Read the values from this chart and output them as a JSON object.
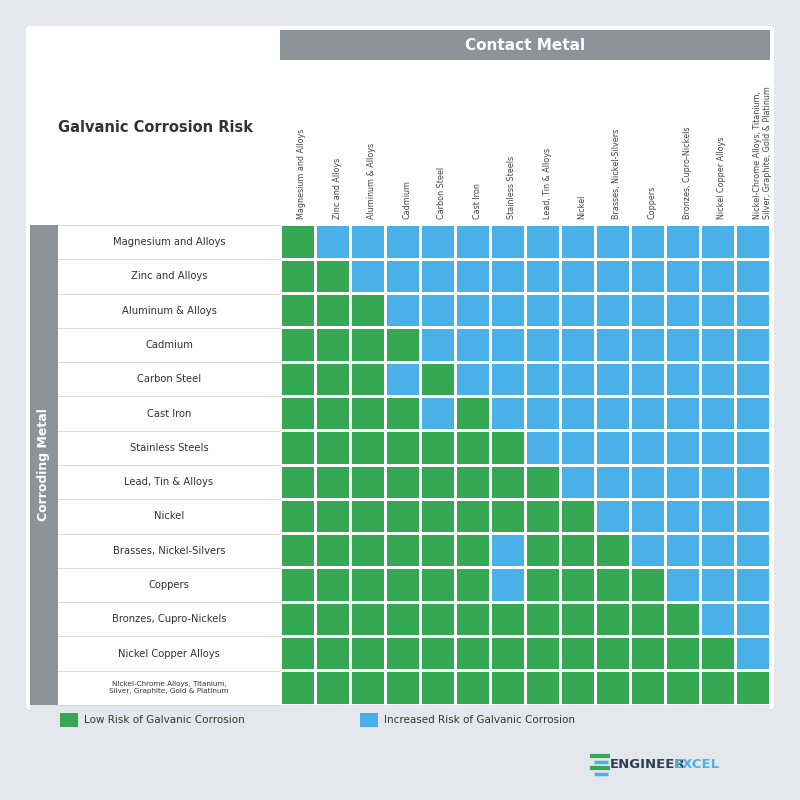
{
  "metals": [
    "Magnesium and Alloys",
    "Zinc and Alloys",
    "Aluminum & Alloys",
    "Cadmium",
    "Carbon Steel",
    "Cast Iron",
    "Stainless Steels",
    "Lead, Tin & Alloys",
    "Nickel",
    "Brasses, Nickel-Silvers",
    "Coppers",
    "Bronzes, Cupro-Nickels",
    "Nickel Copper Alloys",
    "Nickel-Chrome Alloys, Titanium,\nSilver, Graphite, Gold & Platinum"
  ],
  "matrix": [
    [
      1,
      0,
      0,
      0,
      0,
      0,
      0,
      0,
      0,
      0,
      0,
      0,
      0,
      0
    ],
    [
      1,
      1,
      0,
      0,
      0,
      0,
      0,
      0,
      0,
      0,
      0,
      0,
      0,
      0
    ],
    [
      1,
      1,
      1,
      0,
      0,
      0,
      0,
      0,
      0,
      0,
      0,
      0,
      0,
      0
    ],
    [
      1,
      1,
      1,
      1,
      0,
      0,
      0,
      0,
      0,
      0,
      0,
      0,
      0,
      0
    ],
    [
      1,
      1,
      1,
      0,
      1,
      0,
      0,
      0,
      0,
      0,
      0,
      0,
      0,
      0
    ],
    [
      1,
      1,
      1,
      1,
      0,
      1,
      0,
      0,
      0,
      0,
      0,
      0,
      0,
      0
    ],
    [
      1,
      1,
      1,
      1,
      1,
      1,
      1,
      0,
      0,
      0,
      0,
      0,
      0,
      0
    ],
    [
      1,
      1,
      1,
      1,
      1,
      1,
      1,
      1,
      0,
      0,
      0,
      0,
      0,
      0
    ],
    [
      1,
      1,
      1,
      1,
      1,
      1,
      1,
      1,
      1,
      0,
      0,
      0,
      0,
      0
    ],
    [
      1,
      1,
      1,
      1,
      1,
      1,
      0,
      1,
      1,
      1,
      0,
      0,
      0,
      0
    ],
    [
      1,
      1,
      1,
      1,
      1,
      1,
      0,
      1,
      1,
      1,
      1,
      0,
      0,
      0
    ],
    [
      1,
      1,
      1,
      1,
      1,
      1,
      1,
      1,
      1,
      1,
      1,
      1,
      0,
      0
    ],
    [
      1,
      1,
      1,
      1,
      1,
      1,
      1,
      1,
      1,
      1,
      1,
      1,
      1,
      0
    ],
    [
      1,
      1,
      1,
      1,
      1,
      1,
      1,
      1,
      1,
      1,
      1,
      1,
      1,
      1
    ]
  ],
  "green_color": "#34a853",
  "blue_color": "#4ab0e8",
  "header_bg": "#8d9399",
  "header_text": "#ffffff",
  "side_label_bg": "#8d9399",
  "side_label_text": "#ffffff",
  "bg_color": "#e4e7eb",
  "white_color": "#ffffff",
  "title": "Galvanic Corrosion Risk",
  "contact_metal_label": "Contact Metal",
  "corroding_metal_label": "Corroding Metal",
  "legend_low": "Low Risk of Galvanic Corrosion",
  "legend_high": "Increased Risk of Galvanic Corrosion",
  "engineer_text": "ENGINEER",
  "excel_text": "EXCEL",
  "engineer_color": "#2c3e50",
  "excel_color": "#4ab0e8"
}
